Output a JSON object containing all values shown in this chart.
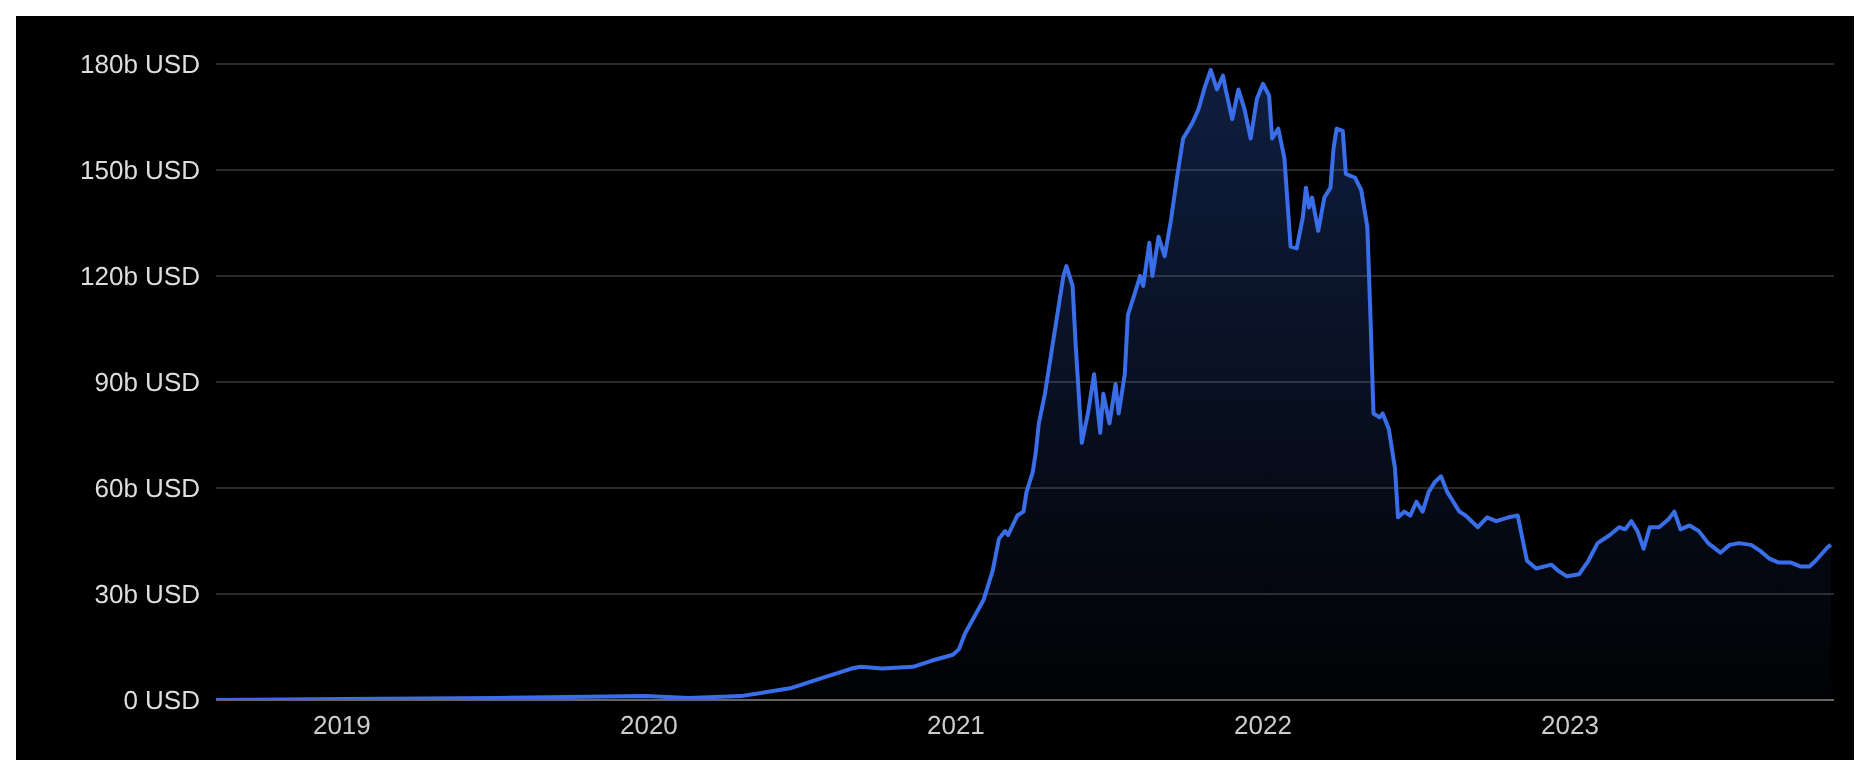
{
  "chart_data": {
    "type": "area",
    "color": "#3a6ee8",
    "x": [
      2018.59,
      2019.0,
      2019.51,
      2019.99,
      2020.13,
      2020.3,
      2020.46,
      2020.56,
      2020.66,
      2020.69,
      2020.76,
      2020.86,
      2020.92,
      2020.99,
      2021.01,
      2021.03,
      2021.09,
      2021.12,
      2021.14,
      2021.16,
      2021.17,
      2021.2,
      2021.22,
      2021.23,
      2021.25,
      2021.26,
      2021.27,
      2021.29,
      2021.31,
      2021.33,
      2021.35,
      2021.36,
      2021.38,
      2021.39,
      2021.4,
      2021.41,
      2021.43,
      2021.45,
      2021.47,
      2021.48,
      2021.5,
      2021.52,
      2021.53,
      2021.55,
      2021.56,
      2021.58,
      2021.6,
      2021.61,
      2021.63,
      2021.64,
      2021.66,
      2021.68,
      2021.7,
      2021.72,
      2021.74,
      2021.77,
      2021.79,
      2021.81,
      2021.83,
      2021.85,
      2021.87,
      2021.88,
      2021.9,
      2021.92,
      2021.94,
      2021.96,
      2021.98,
      2022.0,
      2022.02,
      2022.03,
      2022.05,
      2022.07,
      2022.09,
      2022.11,
      2022.13,
      2022.14,
      2022.15,
      2022.16,
      2022.18,
      2022.2,
      2022.22,
      2022.23,
      2022.24,
      2022.26,
      2022.27,
      2022.3,
      2022.32,
      2022.34,
      2022.35,
      2022.36,
      2022.38,
      2022.39,
      2022.41,
      2022.43,
      2022.44,
      2022.46,
      2022.48,
      2022.5,
      2022.52,
      2022.54,
      2022.56,
      2022.58,
      2022.6,
      2022.62,
      2022.64,
      2022.66,
      2022.7,
      2022.73,
      2022.76,
      2022.8,
      2022.83,
      2022.86,
      2022.89,
      2022.94,
      2022.96,
      2022.99,
      2023.03,
      2023.06,
      2023.09,
      2023.13,
      2023.16,
      2023.18,
      2023.2,
      2023.22,
      2023.24,
      2023.26,
      2023.29,
      2023.32,
      2023.34,
      2023.36,
      2023.39,
      2023.42,
      2023.45,
      2023.49,
      2023.52,
      2023.55,
      2023.59,
      2023.62,
      2023.65,
      2023.68,
      2023.72,
      2023.75,
      2023.78,
      2023.8,
      2023.84,
      2023.85
    ],
    "values": [
      0,
      0.3,
      0.6,
      1.1,
      0.6,
      1.1,
      3.3,
      6.1,
      8.9,
      9.4,
      8.9,
      9.4,
      11.1,
      12.8,
      14.4,
      18.9,
      28.3,
      36.7,
      45.6,
      47.8,
      46.7,
      52.2,
      53.3,
      58.9,
      64.4,
      70.0,
      78.3,
      86.7,
      97.8,
      108.9,
      120.0,
      122.8,
      117.2,
      100.6,
      86.7,
      72.8,
      81.1,
      92.2,
      75.6,
      86.7,
      78.3,
      89.4,
      81.1,
      92.2,
      108.9,
      114.4,
      120.0,
      117.2,
      129.4,
      120.0,
      131.1,
      125.6,
      135.6,
      147.8,
      158.9,
      163.3,
      167.2,
      173.3,
      178.3,
      172.8,
      176.7,
      172.2,
      164.4,
      172.8,
      167.2,
      158.9,
      170.0,
      174.4,
      171.1,
      158.9,
      161.7,
      153.3,
      128.3,
      127.8,
      136.7,
      145.0,
      139.4,
      142.2,
      132.8,
      142.2,
      145.0,
      156.1,
      161.7,
      161.1,
      148.9,
      147.8,
      144.4,
      133.9,
      108.9,
      81.1,
      80.0,
      81.1,
      76.7,
      65.6,
      51.7,
      53.3,
      52.2,
      56.1,
      53.3,
      58.9,
      61.7,
      63.3,
      58.9,
      56.1,
      53.3,
      52.2,
      48.9,
      51.7,
      50.6,
      51.7,
      52.2,
      39.4,
      37.2,
      38.3,
      36.7,
      35.0,
      35.6,
      39.4,
      44.4,
      46.7,
      48.9,
      48.3,
      50.6,
      47.8,
      42.8,
      48.9,
      48.9,
      51.1,
      53.3,
      48.3,
      49.4,
      47.8,
      44.4,
      41.7,
      43.9,
      44.4,
      43.9,
      42.2,
      40.0,
      38.9,
      38.9,
      37.8,
      37.8,
      39.4,
      43.3,
      43.9
    ],
    "xlim": [
      2018.59,
      2023.86
    ],
    "xticks": [
      2019,
      2020,
      2021,
      2022,
      2023
    ],
    "ylim": [
      0,
      180
    ],
    "yticks": [
      {
        "value": 0,
        "label": "0 USD"
      },
      {
        "value": 30,
        "label": "30b USD"
      },
      {
        "value": 60,
        "label": "60b USD"
      },
      {
        "value": 90,
        "label": "90b USD"
      },
      {
        "value": 120,
        "label": "120b USD"
      },
      {
        "value": 150,
        "label": "150b USD"
      },
      {
        "value": 180,
        "label": "180b USD"
      }
    ],
    "grid": "y"
  }
}
